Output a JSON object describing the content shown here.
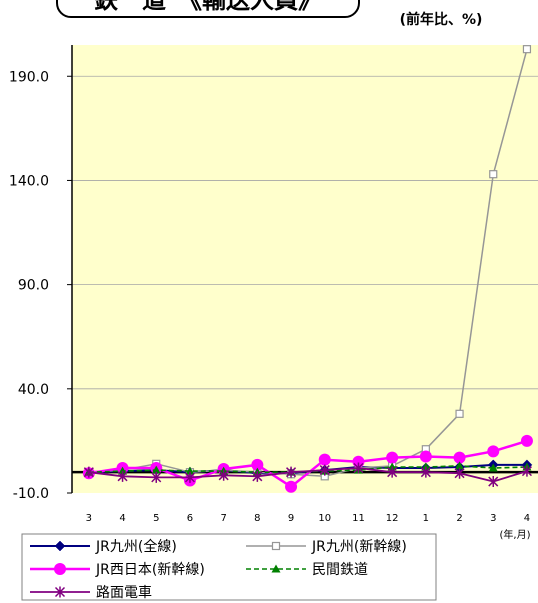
{
  "title": "鉄　道　《輸送人員》",
  "unit_note": "(前年比、%)",
  "chart_data": {
    "type": "line",
    "categories": [
      "3",
      "4",
      "5",
      "6",
      "7",
      "8",
      "9",
      "10",
      "11",
      "12",
      "1",
      "2",
      "3",
      "4"
    ],
    "xlabel": "(年,月)",
    "ylim": [
      -10,
      205
    ],
    "yticks": [
      190,
      140,
      90,
      40,
      -10
    ],
    "ytick_labels": [
      "190.0",
      "140.0",
      "90.0",
      "40.0",
      "-10.0"
    ],
    "grid": true,
    "legend": "bottom",
    "plot_background": "#FFFFCC",
    "series": [
      {
        "name": "JR九州(全線)",
        "color": "#000080",
        "marker": "diamond",
        "line_style": "solid",
        "values": [
          0,
          0.5,
          1,
          0,
          1,
          -0.5,
          -0.5,
          1,
          2.5,
          2,
          2,
          2.5,
          3.5,
          3.5
        ]
      },
      {
        "name": "JR九州(新幹線)",
        "color": "#969696",
        "marker": "square",
        "line_style": "solid",
        "values": [
          0,
          1,
          4,
          0,
          1,
          0,
          -1,
          -2,
          2,
          3,
          11,
          28,
          143,
          203
        ]
      },
      {
        "name": "JR西日本(新幹線)",
        "color": "#FF00FF",
        "marker": "circle",
        "line_style": "solid",
        "values": [
          -0.5,
          2,
          2,
          -4,
          1.5,
          3.5,
          -7,
          6,
          5,
          7,
          7.5,
          7,
          10,
          15
        ]
      },
      {
        "name": "民間鉄道",
        "color": "#008000",
        "marker": "triangle",
        "line_style": "dashed",
        "values": [
          0,
          0.5,
          1,
          0.5,
          0.5,
          0,
          0,
          0.5,
          1,
          2.5,
          2.5,
          3,
          2,
          2.5
        ]
      },
      {
        "name": "路面電車",
        "color": "#800080",
        "marker": "asterisk",
        "line_style": "solid",
        "values": [
          0,
          -2,
          -2.5,
          -2.5,
          -1.5,
          -2,
          0,
          1,
          2,
          0,
          0,
          -0.5,
          -4.5,
          0.5
        ]
      }
    ]
  }
}
